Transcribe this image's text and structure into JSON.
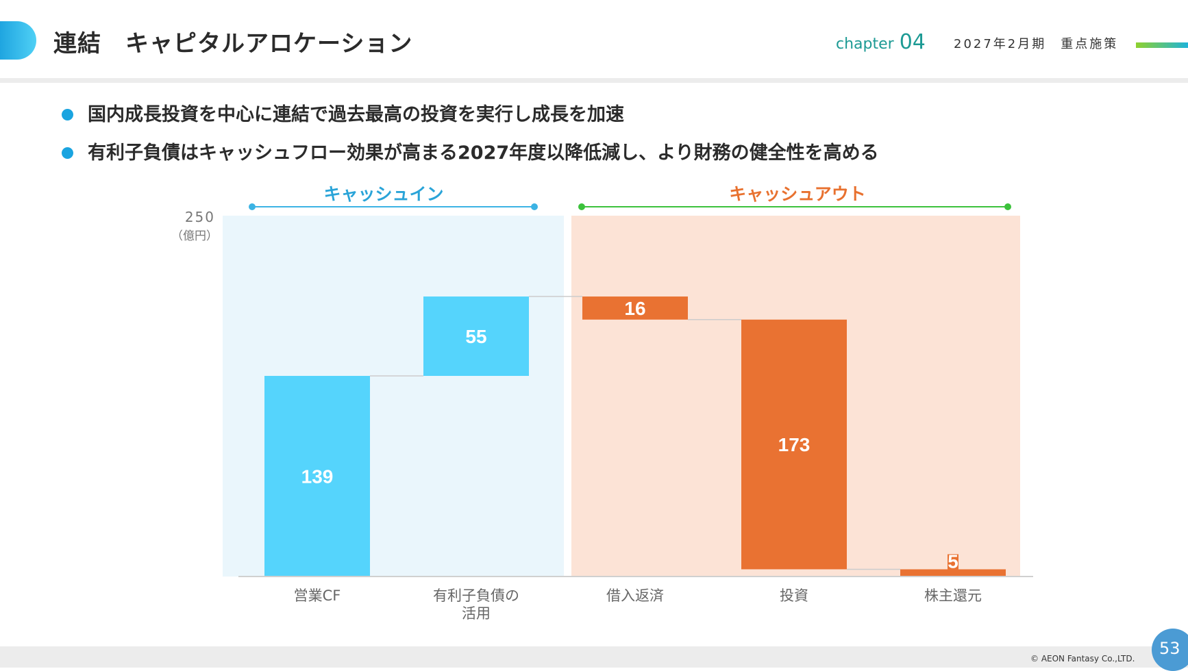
{
  "header": {
    "title": "連結　キャピタルアロケーション",
    "chapter_word": "chapter",
    "chapter_num": "04",
    "period": "2027年2月期　重点施策"
  },
  "bullets": [
    "国内成長投資を中心に連結で過去最高の投資を実行し成長を加速",
    "有利子負債はキャッシュフロー効果が高まる2027年度以降低減し、より財務の健全性を高める"
  ],
  "chart_data": {
    "type": "waterfall",
    "y_tick_label": "250",
    "unit_label": "（億円）",
    "ylim": [
      0,
      250
    ],
    "groups": [
      {
        "label": "キャッシュイン",
        "color": "#2aa4d8",
        "line_color": "#3cb3e4"
      },
      {
        "label": "キャッシュアウト",
        "color": "#e8712f",
        "line_color": "#3cc23c"
      }
    ],
    "categories": [
      "営業CF",
      "有利子負債の\n活用",
      "借入返済",
      "投資",
      "株主還元"
    ],
    "values": [
      139,
      55,
      16,
      173,
      5
    ],
    "value_labels": [
      "139",
      "55",
      "16",
      "173",
      "5"
    ],
    "direction": [
      "in",
      "in",
      "out",
      "out",
      "out"
    ],
    "colors": {
      "in_bar": "#55d4fc",
      "out_bar": "#e97232",
      "in_bg": "#eaf6fc",
      "out_bg": "#fce3d6",
      "connector": "#cccccc"
    }
  },
  "footer": {
    "copyright": "© AEON Fantasy Co.,LTD.",
    "page": "53"
  }
}
